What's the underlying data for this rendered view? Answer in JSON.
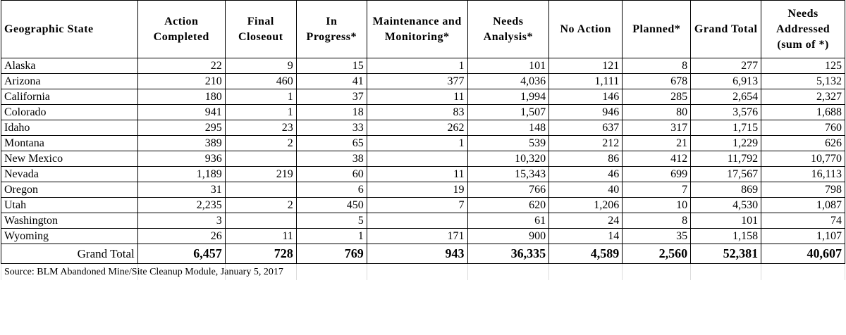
{
  "table": {
    "headers": [
      "Geographic State",
      "Action Completed",
      "Final Closeout",
      "In Progress*",
      "Maintenance and Monitoring*",
      "Needs Analysis*",
      "No Action",
      "Planned*",
      "Grand Total",
      "Needs Addressed (sum of *)"
    ],
    "rows": [
      [
        "Alaska",
        "22",
        "9",
        "15",
        "1",
        "101",
        "121",
        "8",
        "277",
        "125"
      ],
      [
        "Arizona",
        "210",
        "460",
        "41",
        "377",
        "4,036",
        "1,111",
        "678",
        "6,913",
        "5,132"
      ],
      [
        "California",
        "180",
        "1",
        "37",
        "11",
        "1,994",
        "146",
        "285",
        "2,654",
        "2,327"
      ],
      [
        "Colorado",
        "941",
        "1",
        "18",
        "83",
        "1,507",
        "946",
        "80",
        "3,576",
        "1,688"
      ],
      [
        "Idaho",
        "295",
        "23",
        "33",
        "262",
        "148",
        "637",
        "317",
        "1,715",
        "760"
      ],
      [
        "Montana",
        "389",
        "2",
        "65",
        "1",
        "539",
        "212",
        "21",
        "1,229",
        "626"
      ],
      [
        "New Mexico",
        "936",
        "",
        "38",
        "",
        "10,320",
        "86",
        "412",
        "11,792",
        "10,770"
      ],
      [
        "Nevada",
        "1,189",
        "219",
        "60",
        "11",
        "15,343",
        "46",
        "699",
        "17,567",
        "16,113"
      ],
      [
        "Oregon",
        "31",
        "",
        "6",
        "19",
        "766",
        "40",
        "7",
        "869",
        "798"
      ],
      [
        "Utah",
        "2,235",
        "2",
        "450",
        "7",
        "620",
        "1,206",
        "10",
        "4,530",
        "1,087"
      ],
      [
        "Washington",
        "3",
        "",
        "5",
        "",
        "61",
        "24",
        "8",
        "101",
        "74"
      ],
      [
        "Wyoming",
        "26",
        "11",
        "1",
        "171",
        "900",
        "14",
        "35",
        "1,158",
        "1,107"
      ]
    ],
    "total": [
      "Grand Total",
      "6,457",
      "728",
      "769",
      "943",
      "36,335",
      "4,589",
      "2,560",
      "52,381",
      "40,607"
    ],
    "source": "Source: BLM Abandoned Mine/Site Cleanup Module, January 5, 2017"
  }
}
